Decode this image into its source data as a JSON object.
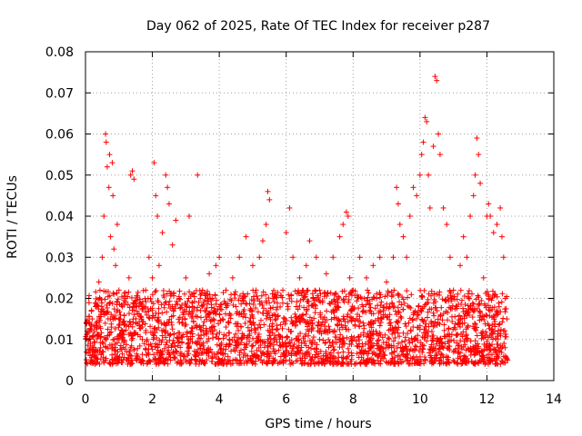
{
  "chart_data": {
    "type": "scatter",
    "title": "Day 062 of 2025, Rate Of TEC Index for receiver p287",
    "xlabel": "GPS time / hours",
    "ylabel": "ROTI / TECUs",
    "xlim": [
      0,
      14
    ],
    "ylim": [
      0,
      0.08
    ],
    "x_ticks": [
      0,
      2,
      4,
      6,
      8,
      10,
      12,
      14
    ],
    "y_ticks": [
      0,
      0.01,
      0.02,
      0.03,
      0.04,
      0.05,
      0.06,
      0.07,
      0.08
    ],
    "x_tick_labels": [
      "0",
      "2",
      "4",
      "6",
      "8",
      "10",
      "12",
      "14"
    ],
    "y_tick_labels": [
      "0",
      "0.01",
      "0.02",
      "0.03",
      "0.04",
      "0.05",
      "0.06",
      "0.07",
      "0.08"
    ],
    "grid": true,
    "marker": "plus",
    "color": "#ff0000",
    "series": [
      {
        "name": "ROTI",
        "points": [
          [
            0.05,
            0.012
          ],
          [
            0.1,
            0.02
          ],
          [
            0.15,
            0.009
          ],
          [
            0.2,
            0.015
          ],
          [
            0.25,
            0.006
          ],
          [
            0.3,
            0.018
          ],
          [
            0.35,
            0.011
          ],
          [
            0.4,
            0.024
          ],
          [
            0.45,
            0.008
          ],
          [
            0.5,
            0.03
          ],
          [
            0.55,
            0.04
          ],
          [
            0.6,
            0.06
          ],
          [
            0.62,
            0.058
          ],
          [
            0.65,
            0.052
          ],
          [
            0.7,
            0.047
          ],
          [
            0.72,
            0.055
          ],
          [
            0.75,
            0.035
          ],
          [
            0.8,
            0.053
          ],
          [
            0.82,
            0.045
          ],
          [
            0.85,
            0.032
          ],
          [
            0.9,
            0.028
          ],
          [
            0.95,
            0.038
          ],
          [
            1.0,
            0.022
          ],
          [
            1.05,
            0.015
          ],
          [
            1.1,
            0.018
          ],
          [
            1.15,
            0.012
          ],
          [
            1.2,
            0.02
          ],
          [
            1.3,
            0.025
          ],
          [
            1.35,
            0.05
          ],
          [
            1.4,
            0.051
          ],
          [
            1.45,
            0.049
          ],
          [
            1.5,
            0.014
          ],
          [
            1.6,
            0.018
          ],
          [
            1.7,
            0.01
          ],
          [
            1.8,
            0.022
          ],
          [
            1.9,
            0.03
          ],
          [
            2.0,
            0.025
          ],
          [
            2.05,
            0.053
          ],
          [
            2.1,
            0.045
          ],
          [
            2.15,
            0.04
          ],
          [
            2.2,
            0.028
          ],
          [
            2.3,
            0.036
          ],
          [
            2.4,
            0.05
          ],
          [
            2.45,
            0.047
          ],
          [
            2.5,
            0.043
          ],
          [
            2.6,
            0.033
          ],
          [
            2.7,
            0.039
          ],
          [
            2.8,
            0.02
          ],
          [
            2.9,
            0.015
          ],
          [
            3.0,
            0.025
          ],
          [
            3.1,
            0.04
          ],
          [
            3.2,
            0.018
          ],
          [
            3.35,
            0.05
          ],
          [
            3.5,
            0.022
          ],
          [
            3.6,
            0.012
          ],
          [
            3.7,
            0.026
          ],
          [
            3.8,
            0.02
          ],
          [
            3.9,
            0.028
          ],
          [
            4.0,
            0.03
          ],
          [
            4.1,
            0.015
          ],
          [
            4.2,
            0.022
          ],
          [
            4.3,
            0.01
          ],
          [
            4.4,
            0.025
          ],
          [
            4.5,
            0.018
          ],
          [
            4.6,
            0.03
          ],
          [
            4.7,
            0.02
          ],
          [
            4.8,
            0.035
          ],
          [
            4.9,
            0.012
          ],
          [
            5.0,
            0.028
          ],
          [
            5.1,
            0.022
          ],
          [
            5.2,
            0.03
          ],
          [
            5.3,
            0.034
          ],
          [
            5.4,
            0.038
          ],
          [
            5.45,
            0.046
          ],
          [
            5.5,
            0.044
          ],
          [
            5.6,
            0.02
          ],
          [
            5.7,
            0.015
          ],
          [
            5.8,
            0.01
          ],
          [
            5.9,
            0.022
          ],
          [
            6.0,
            0.036
          ],
          [
            6.1,
            0.042
          ],
          [
            6.2,
            0.03
          ],
          [
            6.3,
            0.018
          ],
          [
            6.4,
            0.025
          ],
          [
            6.5,
            0.016
          ],
          [
            6.6,
            0.028
          ],
          [
            6.7,
            0.034
          ],
          [
            6.8,
            0.02
          ],
          [
            6.9,
            0.03
          ],
          [
            7.0,
            0.022
          ],
          [
            7.1,
            0.015
          ],
          [
            7.2,
            0.026
          ],
          [
            7.3,
            0.012
          ],
          [
            7.4,
            0.03
          ],
          [
            7.5,
            0.018
          ],
          [
            7.6,
            0.035
          ],
          [
            7.7,
            0.038
          ],
          [
            7.8,
            0.041
          ],
          [
            7.85,
            0.04
          ],
          [
            7.9,
            0.025
          ],
          [
            8.0,
            0.022
          ],
          [
            8.1,
            0.015
          ],
          [
            8.2,
            0.03
          ],
          [
            8.3,
            0.018
          ],
          [
            8.4,
            0.025
          ],
          [
            8.5,
            0.012
          ],
          [
            8.6,
            0.028
          ],
          [
            8.7,
            0.02
          ],
          [
            8.8,
            0.03
          ],
          [
            8.9,
            0.016
          ],
          [
            9.0,
            0.024
          ],
          [
            9.1,
            0.018
          ],
          [
            9.2,
            0.03
          ],
          [
            9.3,
            0.047
          ],
          [
            9.35,
            0.043
          ],
          [
            9.4,
            0.038
          ],
          [
            9.5,
            0.035
          ],
          [
            9.6,
            0.03
          ],
          [
            9.7,
            0.04
          ],
          [
            9.8,
            0.047
          ],
          [
            9.9,
            0.045
          ],
          [
            10.0,
            0.05
          ],
          [
            10.05,
            0.055
          ],
          [
            10.1,
            0.058
          ],
          [
            10.15,
            0.064
          ],
          [
            10.2,
            0.063
          ],
          [
            10.25,
            0.05
          ],
          [
            10.3,
            0.042
          ],
          [
            10.4,
            0.057
          ],
          [
            10.45,
            0.074
          ],
          [
            10.5,
            0.073
          ],
          [
            10.55,
            0.06
          ],
          [
            10.6,
            0.055
          ],
          [
            10.7,
            0.042
          ],
          [
            10.8,
            0.038
          ],
          [
            10.9,
            0.03
          ],
          [
            11.0,
            0.022
          ],
          [
            11.1,
            0.018
          ],
          [
            11.2,
            0.028
          ],
          [
            11.3,
            0.035
          ],
          [
            11.4,
            0.03
          ],
          [
            11.5,
            0.04
          ],
          [
            11.6,
            0.045
          ],
          [
            11.65,
            0.05
          ],
          [
            11.7,
            0.059
          ],
          [
            11.75,
            0.055
          ],
          [
            11.8,
            0.048
          ],
          [
            11.9,
            0.025
          ],
          [
            12.0,
            0.04
          ],
          [
            12.05,
            0.043
          ],
          [
            12.1,
            0.04
          ],
          [
            12.2,
            0.036
          ],
          [
            12.3,
            0.038
          ],
          [
            12.4,
            0.042
          ],
          [
            12.45,
            0.035
          ],
          [
            12.5,
            0.03
          ],
          [
            12.55,
            0.02
          ],
          [
            12.6,
            0.015
          ],
          [
            12.62,
            0.005
          ]
        ]
      }
    ],
    "band": {
      "description": "dense lower cluster of ROTI values",
      "x_start": 0.0,
      "x_end": 12.6,
      "y_low": 0.004,
      "y_high": 0.022
    }
  }
}
